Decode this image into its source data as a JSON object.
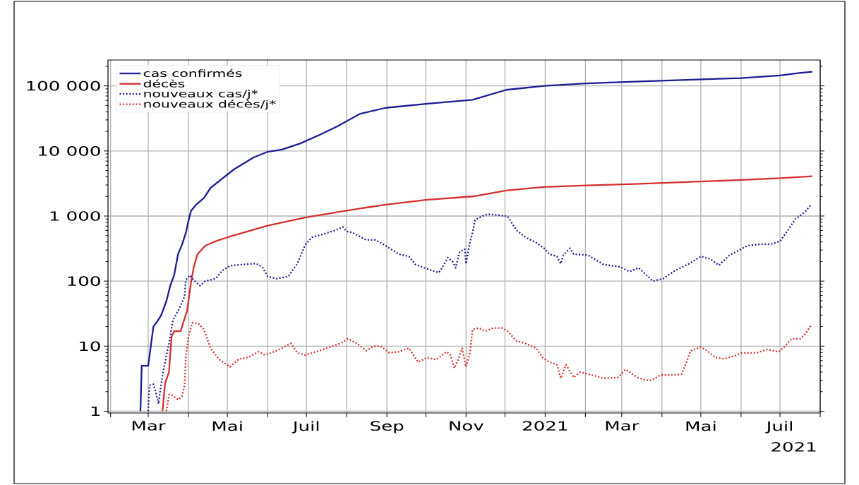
{
  "chart_data": {
    "type": "line",
    "log": true,
    "grid": true,
    "legend": "top left",
    "xlim": [
      "2020-01-30",
      "2021-08-01"
    ],
    "ylim": [
      0.94,
      250000
    ],
    "xticks": [
      {
        "value": "2020-02-01",
        "label": null
      },
      {
        "value": "2020-03-01",
        "label": "Mar"
      },
      {
        "value": "2020-04-01",
        "label": null
      },
      {
        "value": "2020-05-01",
        "label": "Mai"
      },
      {
        "value": "2020-06-01",
        "label": null
      },
      {
        "value": "2020-07-01",
        "label": "Juil"
      },
      {
        "value": "2020-08-01",
        "label": null
      },
      {
        "value": "2020-09-01",
        "label": "Sep"
      },
      {
        "value": "2020-10-01",
        "label": null
      },
      {
        "value": "2020-11-01",
        "label": "Nov"
      },
      {
        "value": "2020-12-01",
        "label": null
      },
      {
        "value": "2021-01-01",
        "label": "2021"
      },
      {
        "value": "2021-02-01",
        "label": null
      },
      {
        "value": "2021-03-01",
        "label": "Mar"
      },
      {
        "value": "2021-04-01",
        "label": null
      },
      {
        "value": "2021-05-01",
        "label": "Mai"
      },
      {
        "value": "2021-06-01",
        "label": null
      },
      {
        "value": "2021-07-01",
        "label": "Juil"
      },
      {
        "value": "2021-08-01",
        "label": null
      }
    ],
    "yticks": [
      1,
      10,
      100,
      {
        "value": 1000,
        "label": "1 000"
      },
      {
        "value": 10000,
        "label": "10 000"
      },
      {
        "value": 100000,
        "label": "100 000"
      }
    ],
    "annotations": [
      "2021"
    ],
    "series": [
      {
        "name": "cas confirmés",
        "color": "#1c1c94",
        "line_style": "solid",
        "x": [
          "2020-02-24",
          "2020-02-25",
          "2020-03-01",
          "2020-03-05",
          "2020-03-08",
          "2020-03-11",
          "2020-03-15",
          "2020-03-18",
          "2020-03-21",
          "2020-03-24",
          "2020-03-27",
          "2020-03-30",
          "2020-04-01",
          "2020-04-03",
          "2020-04-07",
          "2020-04-13",
          "2020-04-18",
          "2020-05-06",
          "2020-05-21",
          "2020-06-01",
          "2020-06-12",
          "2020-06-26",
          "2020-07-12",
          "2020-07-25",
          "2020-08-11",
          "2020-08-31",
          "2020-10-01",
          "2020-11-06",
          "2020-12-02",
          "2020-12-31",
          "2021-02-02",
          "2021-03-11",
          "2021-03-31",
          "2021-06-01",
          "2021-07-01",
          "2021-07-16",
          "2021-07-26"
        ],
        "values": [
          1,
          5,
          5,
          20,
          24,
          30,
          49,
          85,
          123,
          260,
          360,
          550,
          840,
          1200,
          1500,
          1900,
          2700,
          5200,
          7900,
          9700,
          10500,
          13000,
          18000,
          24000,
          37000,
          46000,
          53000,
          61000,
          87000,
          100000,
          109000,
          116000,
          120000,
          132000,
          145000,
          158000,
          165000
        ]
      },
      {
        "name": "décès",
        "color": "#d62f2f",
        "line_style": "solid",
        "x": [
          "2020-03-12",
          "2020-03-14",
          "2020-03-17",
          "2020-03-19",
          "2020-03-21",
          "2020-03-26",
          "2020-03-28",
          "2020-03-31",
          "2020-04-03",
          "2020-04-05",
          "2020-04-08",
          "2020-04-14",
          "2020-04-22",
          "2020-05-01",
          "2020-06-01",
          "2020-06-30",
          "2020-07-26",
          "2020-08-16",
          "2020-08-31",
          "2020-10-01",
          "2020-11-06",
          "2020-12-02",
          "2020-12-31",
          "2021-02-02",
          "2021-03-11",
          "2021-06-01",
          "2021-07-01",
          "2021-07-26"
        ],
        "values": [
          1,
          2.7,
          4,
          14,
          17,
          17,
          23,
          35,
          96,
          160,
          260,
          350,
          410,
          470,
          710,
          950,
          1160,
          1350,
          1500,
          1770,
          2000,
          2460,
          2800,
          2950,
          3100,
          3580,
          3810,
          4100
        ]
      },
      {
        "name": "nouveaux cas/j*",
        "color": "#1c1c94",
        "line_style": "dotted",
        "x": [
          "2020-03-01",
          "2020-03-02",
          "2020-03-05",
          "2020-03-07",
          "2020-03-09",
          "2020-03-10",
          "2020-03-12",
          "2020-03-14",
          "2020-03-17",
          "2020-03-20",
          "2020-03-25",
          "2020-03-29",
          "2020-03-30",
          "2020-04-02",
          "2020-04-05",
          "2020-04-10",
          "2020-04-14",
          "2020-04-22",
          "2020-04-27",
          "2020-05-03",
          "2020-05-10",
          "2020-05-23",
          "2020-05-28",
          "2020-06-01",
          "2020-06-08",
          "2020-06-17",
          "2020-06-24",
          "2020-06-30",
          "2020-07-05",
          "2020-07-14",
          "2020-07-23",
          "2020-07-29",
          "2020-08-01",
          "2020-08-05",
          "2020-08-16",
          "2020-08-23",
          "2020-08-30",
          "2020-09-10",
          "2020-09-18",
          "2020-09-23",
          "2020-09-28",
          "2020-10-06",
          "2020-10-11",
          "2020-10-15",
          "2020-10-18",
          "2020-10-22",
          "2020-10-24",
          "2020-10-27",
          "2020-10-31",
          "2020-11-01",
          "2020-11-04",
          "2020-11-06",
          "2020-11-08",
          "2020-11-13",
          "2020-11-18",
          "2020-11-26",
          "2020-12-03",
          "2020-12-10",
          "2020-12-17",
          "2020-12-26",
          "2021-01-01",
          "2021-01-04",
          "2021-01-10",
          "2021-01-13",
          "2021-01-15",
          "2021-01-20",
          "2021-01-23",
          "2021-02-03",
          "2021-02-15",
          "2021-02-28",
          "2021-03-07",
          "2021-03-14",
          "2021-03-25",
          "2021-04-02",
          "2021-04-11",
          "2021-04-22",
          "2021-05-01",
          "2021-05-08",
          "2021-05-15",
          "2021-05-23",
          "2021-05-30",
          "2021-06-06",
          "2021-06-17",
          "2021-06-24",
          "2021-07-01",
          "2021-07-07",
          "2021-07-13",
          "2021-07-17",
          "2021-07-21",
          "2021-07-25"
        ],
        "values": [
          1,
          2.5,
          2.6,
          1.9,
          1.3,
          1.9,
          3.5,
          5.7,
          11,
          25,
          38,
          58,
          104,
          123,
          104,
          85,
          100,
          109,
          145,
          172,
          178,
          186,
          165,
          118,
          109,
          118,
          186,
          360,
          470,
          530,
          600,
          680,
          580,
          560,
          430,
          430,
          360,
          260,
          240,
          180,
          165,
          145,
          135,
          180,
          230,
          195,
          160,
          280,
          310,
          185,
          400,
          550,
          870,
          990,
          1070,
          1030,
          990,
          600,
          470,
          380,
          310,
          260,
          240,
          185,
          250,
          320,
          260,
          250,
          180,
          165,
          140,
          160,
          100,
          109,
          145,
          185,
          240,
          220,
          175,
          250,
          295,
          350,
          370,
          370,
          410,
          600,
          910,
          1030,
          1200,
          1500
        ]
      },
      {
        "name": "nouveaux décès/j*",
        "color": "#d62f2f",
        "line_style": "dotted",
        "x": [
          "2020-03-15",
          "2020-03-17",
          "2020-03-19",
          "2020-03-24",
          "2020-03-27",
          "2020-03-29",
          "2020-03-30",
          "2020-04-01",
          "2020-04-04",
          "2020-04-09",
          "2020-04-13",
          "2020-04-18",
          "2020-04-25",
          "2020-05-03",
          "2020-05-10",
          "2020-05-17",
          "2020-05-25",
          "2020-05-30",
          "2020-06-08",
          "2020-06-19",
          "2020-06-24",
          "2020-06-30",
          "2020-07-11",
          "2020-07-21",
          "2020-07-27",
          "2020-08-02",
          "2020-08-09",
          "2020-08-16",
          "2020-08-22",
          "2020-08-27",
          "2020-09-03",
          "2020-09-10",
          "2020-09-18",
          "2020-09-25",
          "2020-10-02",
          "2020-10-09",
          "2020-10-17",
          "2020-10-20",
          "2020-10-23",
          "2020-10-26",
          "2020-10-29",
          "2020-11-01",
          "2020-11-04",
          "2020-11-06",
          "2020-11-11",
          "2020-11-16",
          "2020-11-22",
          "2020-11-29",
          "2020-12-03",
          "2020-12-10",
          "2020-12-17",
          "2020-12-25",
          "2020-12-30",
          "2021-01-04",
          "2021-01-10",
          "2021-01-13",
          "2021-01-17",
          "2021-01-23",
          "2021-01-28",
          "2021-02-06",
          "2021-02-15",
          "2021-02-26",
          "2021-03-04",
          "2021-03-13",
          "2021-03-20",
          "2021-03-24",
          "2021-03-31",
          "2021-04-07",
          "2021-04-16",
          "2021-04-20",
          "2021-04-23",
          "2021-05-01",
          "2021-05-06",
          "2021-05-12",
          "2021-05-19",
          "2021-05-26",
          "2021-06-02",
          "2021-06-13",
          "2021-06-21",
          "2021-06-30",
          "2021-07-05",
          "2021-07-10",
          "2021-07-17",
          "2021-07-20",
          "2021-07-25"
        ],
        "values": [
          1,
          1.8,
          1.8,
          1.5,
          1.7,
          2.5,
          6.7,
          14,
          23,
          22,
          18,
          9.3,
          6.2,
          4.8,
          6.4,
          6.7,
          8.2,
          7.3,
          8.5,
          11,
          7.9,
          7.3,
          8.5,
          10,
          11,
          13,
          11,
          8.5,
          10,
          10,
          7.9,
          8.2,
          9.3,
          5.7,
          6.7,
          6.2,
          8.2,
          7.3,
          4.6,
          6.2,
          9.3,
          4.8,
          7.9,
          18,
          19,
          17,
          19,
          19,
          17,
          12,
          11,
          9.3,
          6.7,
          5.7,
          5.2,
          3.2,
          5.2,
          3.3,
          4,
          3.6,
          3.2,
          3.3,
          4.4,
          3.3,
          3,
          3,
          3.6,
          3.6,
          3.7,
          5.7,
          8.5,
          9.7,
          8.5,
          6.7,
          6.4,
          7,
          7.9,
          7.9,
          8.9,
          8.2,
          10,
          13,
          13,
          15,
          21
        ]
      }
    ]
  }
}
